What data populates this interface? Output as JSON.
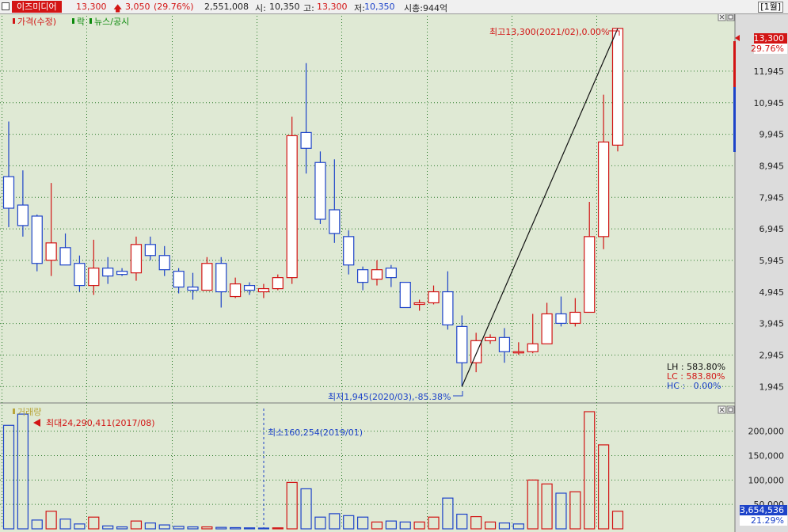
{
  "header": {
    "stock_name": "이즈미디어",
    "price": "13,300",
    "change": "3,050",
    "change_pct": "(29.76%)",
    "volume": "2,551,008",
    "open_label": "시:",
    "open": "10,350",
    "high_label": "고:",
    "high": "13,300",
    "low_label": "저:",
    "low": "10,350",
    "mcap": "시총:944억",
    "period": "[1월]"
  },
  "legend": {
    "price": "가격(수정)",
    "drop": "락",
    "news": "뉴스/공시",
    "volume": "거래량"
  },
  "annotations": {
    "max_label": "최고13,300(2021/02),0.00%",
    "min_label": "최저1,945(2020/03),-85.38%",
    "vol_max_label": "최대24,290,411(2017/08)",
    "vol_min_label": "최소160,254(2019/01)"
  },
  "stats": {
    "lh": "LH : 583.80%",
    "lc": "LC : 583.80%",
    "hc": "HC :   0.00%"
  },
  "badges": {
    "price": "13,300",
    "pct": "29.76%",
    "vol": "3,654,536",
    "vol_pct": "21.29%"
  },
  "colors": {
    "up": "#d21414",
    "down": "#1d43c9",
    "background": "#dfe9d4",
    "grid": "#2a7a2a"
  },
  "chart_data": [
    {
      "type": "candlestick",
      "ylim": [
        1500,
        13600
      ],
      "y_ticks": [
        1945,
        2945,
        3945,
        4945,
        5945,
        6945,
        7945,
        8945,
        9945,
        10945,
        11945
      ],
      "y_tick_labels": [
        "1,945",
        "2,945",
        "3,945",
        "4,945",
        "5,945",
        "6,945",
        "7,945",
        "8,945",
        "9,945",
        "10,945",
        "11,945"
      ],
      "candles": [
        {
          "o": 8600,
          "h": 10350,
          "l": 7000,
          "c": 7600
        },
        {
          "o": 7700,
          "h": 8800,
          "l": 6700,
          "c": 7050
        },
        {
          "o": 7350,
          "h": 7400,
          "l": 5600,
          "c": 5850
        },
        {
          "o": 5950,
          "h": 8400,
          "l": 5450,
          "c": 6500
        },
        {
          "o": 6350,
          "h": 6800,
          "l": 5800,
          "c": 5800
        },
        {
          "o": 5850,
          "h": 6100,
          "l": 4950,
          "c": 5150
        },
        {
          "o": 5150,
          "h": 6600,
          "l": 4850,
          "c": 5700
        },
        {
          "o": 5700,
          "h": 6050,
          "l": 5200,
          "c": 5450
        },
        {
          "o": 5600,
          "h": 5700,
          "l": 5450,
          "c": 5500
        },
        {
          "o": 5550,
          "h": 6700,
          "l": 5300,
          "c": 6450
        },
        {
          "o": 6450,
          "h": 6700,
          "l": 5950,
          "c": 6100
        },
        {
          "o": 6100,
          "h": 6400,
          "l": 5450,
          "c": 5650
        },
        {
          "o": 5600,
          "h": 5700,
          "l": 4900,
          "c": 5100
        },
        {
          "o": 5100,
          "h": 5550,
          "l": 4700,
          "c": 5000
        },
        {
          "o": 5000,
          "h": 6050,
          "l": 5000,
          "c": 5850
        },
        {
          "o": 5850,
          "h": 6050,
          "l": 4450,
          "c": 4950
        },
        {
          "o": 4800,
          "h": 5400,
          "l": 4750,
          "c": 5200
        },
        {
          "o": 5150,
          "h": 5250,
          "l": 4850,
          "c": 5000
        },
        {
          "o": 4950,
          "h": 5200,
          "l": 4750,
          "c": 5050
        },
        {
          "o": 5050,
          "h": 5500,
          "l": 5000,
          "c": 5400
        },
        {
          "o": 5400,
          "h": 10500,
          "l": 5200,
          "c": 9900
        },
        {
          "o": 10000,
          "h": 12200,
          "l": 8700,
          "c": 9500
        },
        {
          "o": 9050,
          "h": 9400,
          "l": 7100,
          "c": 7250
        },
        {
          "o": 7550,
          "h": 9150,
          "l": 6500,
          "c": 6800
        },
        {
          "o": 6700,
          "h": 6900,
          "l": 5500,
          "c": 5800
        },
        {
          "o": 5650,
          "h": 5750,
          "l": 5000,
          "c": 5250
        },
        {
          "o": 5350,
          "h": 5950,
          "l": 5150,
          "c": 5650
        },
        {
          "o": 5700,
          "h": 5800,
          "l": 5100,
          "c": 5400
        },
        {
          "o": 5250,
          "h": 5250,
          "l": 4450,
          "c": 4450
        },
        {
          "o": 4550,
          "h": 4700,
          "l": 4350,
          "c": 4600
        },
        {
          "o": 4600,
          "h": 5150,
          "l": 4550,
          "c": 4950
        },
        {
          "o": 4950,
          "h": 5600,
          "l": 3750,
          "c": 3900
        },
        {
          "o": 3850,
          "h": 4200,
          "l": 1945,
          "c": 2700
        },
        {
          "o": 2700,
          "h": 3650,
          "l": 2400,
          "c": 3400
        },
        {
          "o": 3400,
          "h": 3600,
          "l": 3300,
          "c": 3500
        },
        {
          "o": 3500,
          "h": 3800,
          "l": 2700,
          "c": 3050
        },
        {
          "o": 3050,
          "h": 3350,
          "l": 2950,
          "c": 3050
        },
        {
          "o": 3050,
          "h": 4250,
          "l": 3000,
          "c": 3300
        },
        {
          "o": 3300,
          "h": 4600,
          "l": 3300,
          "c": 4250
        },
        {
          "o": 4250,
          "h": 4800,
          "l": 3850,
          "c": 3950
        },
        {
          "o": 3950,
          "h": 4750,
          "l": 3850,
          "c": 4300
        },
        {
          "o": 4300,
          "h": 7800,
          "l": 4300,
          "c": 6700
        },
        {
          "o": 6700,
          "h": 11200,
          "l": 6300,
          "c": 9700
        },
        {
          "o": 9600,
          "h": 13300,
          "l": 9400,
          "c": 13300
        }
      ]
    },
    {
      "type": "bar",
      "series": [
        {
          "values": [
            212000,
            235000,
            18000,
            36000,
            20000,
            10000,
            24000,
            6000,
            4000,
            16000,
            12000,
            8000,
            5000,
            4000,
            4000,
            3000,
            2500,
            2000,
            1600,
            2000,
            95000,
            82000,
            24000,
            31000,
            27000,
            24000,
            14000,
            16000,
            14000,
            14000,
            24000,
            63000,
            30000,
            25000,
            14000,
            12000,
            10000,
            100000,
            92000,
            73000,
            76000,
            240000,
            172000,
            36000
          ]
        }
      ],
      "ylim": [
        0,
        240000
      ],
      "y_ticks": [
        50000,
        100000,
        150000,
        200000
      ],
      "y_tick_labels": [
        "50,000",
        "100,000",
        "150,000",
        "200,000"
      ],
      "up": [
        false,
        false,
        false,
        true,
        false,
        false,
        true,
        false,
        false,
        true,
        false,
        false,
        false,
        false,
        true,
        false,
        false,
        false,
        false,
        true,
        true,
        false,
        false,
        false,
        false,
        false,
        true,
        false,
        false,
        true,
        true,
        false,
        false,
        true,
        true,
        false,
        false,
        true,
        true,
        false,
        true,
        true,
        true,
        true
      ]
    }
  ]
}
